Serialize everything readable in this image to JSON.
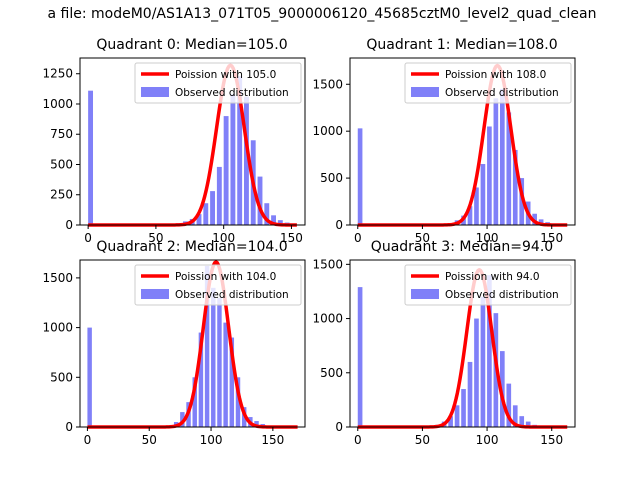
{
  "suptitle": "a file: modeM0/AS1A13_071T05_9000006120_45685cztM0_level2_quad_clean",
  "colors": {
    "hist_fill": "#8080f8",
    "poisson_line": "#ff0000",
    "legend_border": "#cccccc"
  },
  "chart_data": [
    {
      "type": "bar",
      "title": "Quadrant 0: Median=105.0",
      "xlim": [
        -6,
        160
      ],
      "ylim": [
        0,
        1380
      ],
      "xticks": [
        0,
        50,
        100,
        150
      ],
      "yticks": [
        0,
        250,
        500,
        750,
        1000,
        1250
      ],
      "legend_position": "top-right",
      "series": [
        {
          "name": "Poission with 105.0",
          "kind": "line",
          "lambda": 105,
          "peak": 1320
        },
        {
          "name": "Observed distribution",
          "kind": "histogram",
          "bins": [
            [
              0,
              1110
            ],
            [
              65,
              15
            ],
            [
              70,
              30
            ],
            [
              75,
              50
            ],
            [
              80,
              90
            ],
            [
              85,
              180
            ],
            [
              90,
              280
            ],
            [
              95,
              480
            ],
            [
              100,
              900
            ],
            [
              105,
              1080
            ],
            [
              110,
              1230
            ],
            [
              115,
              1060
            ],
            [
              120,
              700
            ],
            [
              125,
              400
            ],
            [
              130,
              180
            ],
            [
              135,
              80
            ],
            [
              140,
              40
            ],
            [
              145,
              20
            ]
          ]
        }
      ]
    },
    {
      "type": "bar",
      "title": "Quadrant 1: Median=108.0",
      "xlim": [
        -6,
        168
      ],
      "ylim": [
        0,
        1780
      ],
      "xticks": [
        0,
        50,
        100,
        150
      ],
      "yticks": [
        0,
        500,
        1000,
        1500
      ],
      "legend_position": "top-right",
      "series": [
        {
          "name": "Poission with 108.0",
          "kind": "line",
          "lambda": 108,
          "peak": 1700
        },
        {
          "name": "Observed distribution",
          "kind": "histogram",
          "bins": [
            [
              0,
              1030
            ],
            [
              70,
              20
            ],
            [
              75,
              50
            ],
            [
              80,
              100
            ],
            [
              85,
              200
            ],
            [
              90,
              400
            ],
            [
              95,
              650
            ],
            [
              100,
              1050
            ],
            [
              105,
              1350
            ],
            [
              110,
              1450
            ],
            [
              115,
              1200
            ],
            [
              120,
              800
            ],
            [
              125,
              500
            ],
            [
              130,
              250
            ],
            [
              135,
              120
            ],
            [
              140,
              60
            ],
            [
              145,
              30
            ],
            [
              150,
              15
            ]
          ]
        }
      ]
    },
    {
      "type": "bar",
      "title": "Quadrant 2: Median=104.0",
      "xlim": [
        -6,
        176
      ],
      "ylim": [
        0,
        1680
      ],
      "xticks": [
        0,
        50,
        100,
        150
      ],
      "yticks": [
        0,
        500,
        1000,
        1500
      ],
      "legend_position": "top-right",
      "series": [
        {
          "name": "Poission with 104.0",
          "kind": "line",
          "lambda": 104,
          "peak": 1660
        },
        {
          "name": "Observed distribution",
          "kind": "histogram",
          "bins": [
            [
              0,
              1000
            ],
            [
              70,
              50
            ],
            [
              75,
              150
            ],
            [
              80,
              250
            ],
            [
              85,
              500
            ],
            [
              90,
              950
            ],
            [
              95,
              1620
            ],
            [
              100,
              1400
            ],
            [
              105,
              1300
            ],
            [
              110,
              1050
            ],
            [
              115,
              900
            ],
            [
              120,
              500
            ],
            [
              125,
              200
            ],
            [
              130,
              100
            ],
            [
              135,
              60
            ],
            [
              140,
              30
            ]
          ]
        }
      ]
    },
    {
      "type": "bar",
      "title": "Quadrant 3: Median=94.0",
      "xlim": [
        -6,
        168
      ],
      "ylim": [
        0,
        1540
      ],
      "xticks": [
        0,
        50,
        100,
        150
      ],
      "yticks": [
        0,
        500,
        1000,
        1500
      ],
      "legend_position": "top-right",
      "series": [
        {
          "name": "Poission with 94.0",
          "kind": "line",
          "lambda": 94,
          "peak": 1450
        },
        {
          "name": "Observed distribution",
          "kind": "histogram",
          "bins": [
            [
              0,
              1290
            ],
            [
              60,
              20
            ],
            [
              65,
              50
            ],
            [
              70,
              100
            ],
            [
              75,
              200
            ],
            [
              80,
              350
            ],
            [
              85,
              600
            ],
            [
              90,
              1000
            ],
            [
              95,
              1200
            ],
            [
              100,
              1400
            ],
            [
              105,
              1050
            ],
            [
              110,
              700
            ],
            [
              115,
              400
            ],
            [
              120,
              200
            ],
            [
              125,
              100
            ],
            [
              130,
              50
            ],
            [
              135,
              20
            ]
          ]
        }
      ]
    }
  ]
}
